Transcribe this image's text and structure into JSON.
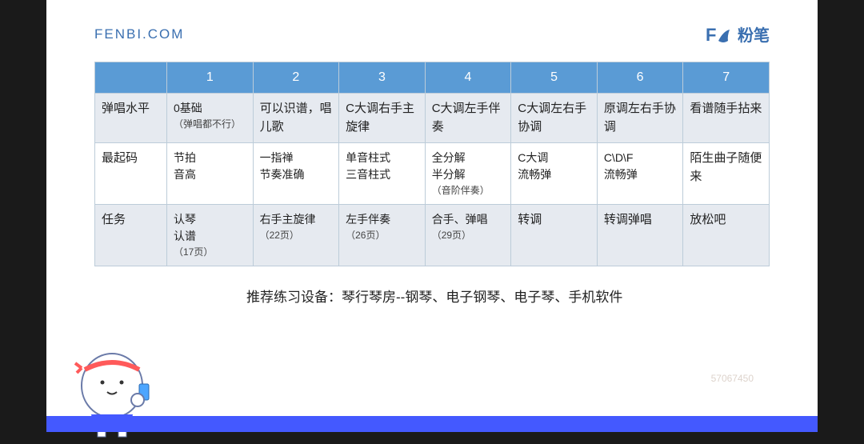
{
  "header": {
    "site_url": "FENBI.COM",
    "logo_text": "粉笔",
    "logo_fb": "Fb"
  },
  "table": {
    "columns": [
      "",
      "1",
      "2",
      "3",
      "4",
      "5",
      "6",
      "7"
    ],
    "rows": [
      {
        "label": "弹唱水平",
        "cells": [
          "0基础\n（弹唱都不行）",
          "可以识谱，唱儿歌",
          "C大调右手主旋律",
          "C大调左手伴奏",
          "C大调左右手协调",
          "原调左右手协调",
          "看谱随手拈来"
        ]
      },
      {
        "label": "最起码",
        "cells": [
          "节拍\n音高",
          "一指禅\n节奏准确",
          "单音柱式\n三音柱式",
          "全分解\n半分解\n（音阶伴奏）",
          "C大调\n流畅弹",
          "C\\D\\F\n流畅弹",
          "陌生曲子随便来"
        ]
      },
      {
        "label": "任务",
        "cells": [
          "认琴\n认谱\n（17页）",
          "右手主旋律\n\n（22页）",
          "左手伴奏\n\n（26页）",
          "合手、弹唱\n\n（29页）",
          "转调",
          "转调弹唱",
          "放松吧"
        ]
      }
    ],
    "header_bg": "#5a9bd5",
    "header_fg": "#ffffff",
    "border_color": "#bcccd9",
    "alt_row_bg": "#e6eaf0",
    "plain_row_bg": "#ffffff"
  },
  "recommendation": "推荐练习设备：琴行琴房--钢琴、电子钢琴、电子琴、手机软件",
  "footer_bar_color": "#4459ff",
  "watermark": "57067450"
}
